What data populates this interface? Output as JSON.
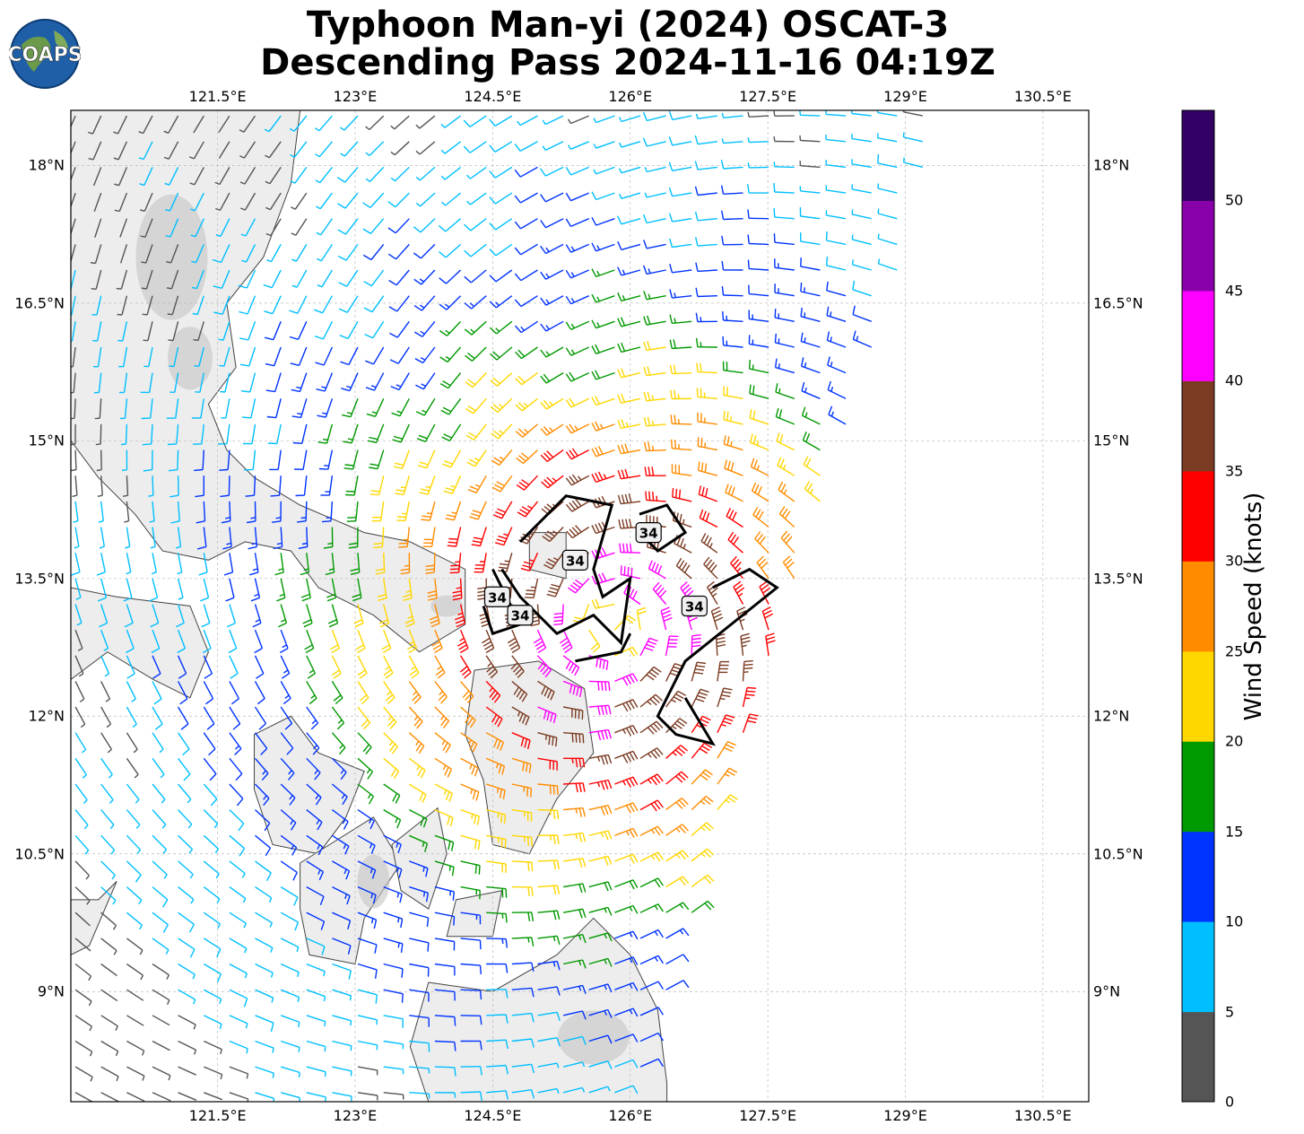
{
  "title_line1": "Typhoon Man-yi (2024) OSCAT-3",
  "title_line2": "Descending Pass 2024-11-16 04:19Z",
  "logo_text": "COAPS",
  "lon_ticks": [
    "121.5°E",
    "123°E",
    "124.5°E",
    "126°E",
    "127.5°E",
    "129°E",
    "130.5°E"
  ],
  "lat_ticks": [
    "18°N",
    "16.5°N",
    "15°N",
    "13.5°N",
    "12°N",
    "10.5°N",
    "9°N"
  ],
  "colorbar": {
    "label": "Wind Speed (knots)",
    "ticks": [
      "0",
      "5",
      "10",
      "15",
      "20",
      "25",
      "30",
      "35",
      "40",
      "45",
      "50"
    ],
    "colors": [
      "#555555",
      "#00bfff",
      "#0033ff",
      "#009900",
      "#ffd700",
      "#ff8c00",
      "#ff0000",
      "#7b3b22",
      "#ff00ff",
      "#8800aa",
      "#330066"
    ]
  },
  "contour_labels": [
    "34",
    "34",
    "34",
    "34",
    "34"
  ],
  "map": {
    "lon_range": [
      119.9,
      131.0
    ],
    "lat_range": [
      7.8,
      18.6
    ],
    "storm_center": [
      125.8,
      13.0
    ],
    "gridlines": true
  }
}
